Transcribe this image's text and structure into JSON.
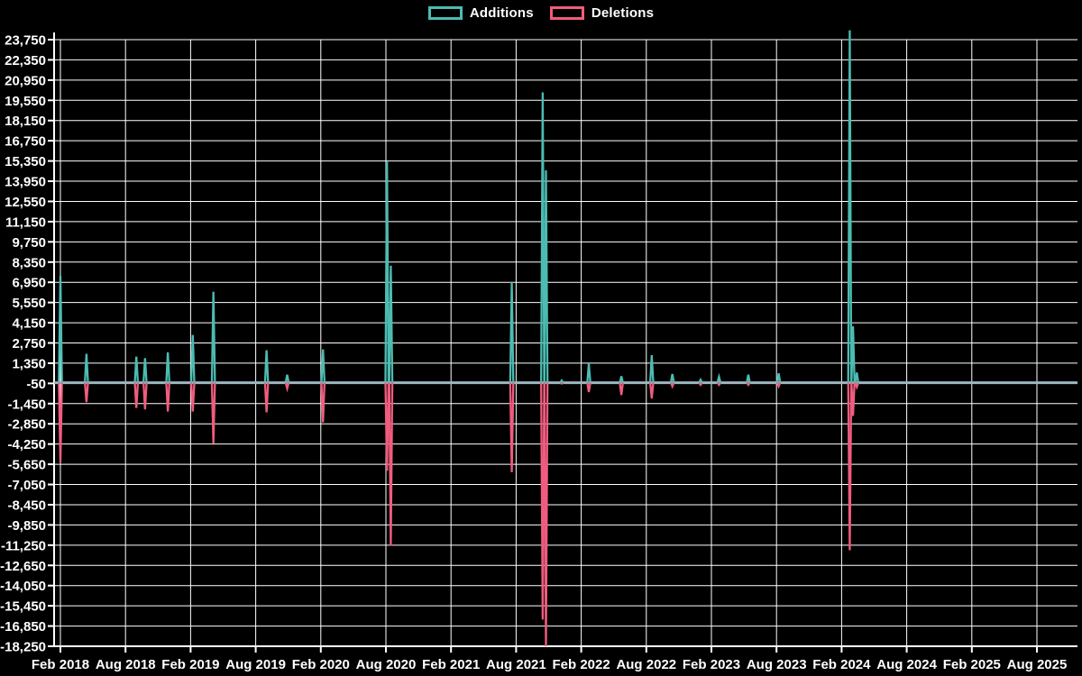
{
  "legend": {
    "additions_label": "Additions",
    "deletions_label": "Deletions"
  },
  "colors": {
    "additions": "#4cbcb2",
    "deletions": "#f05c7e",
    "grid": "#ffffff",
    "zero_line": "#9db6bf",
    "background": "#000000",
    "text": "#ffffff"
  },
  "chart_data": {
    "type": "line",
    "title": "",
    "xlabel": "",
    "ylabel": "",
    "legend_position": "top-center",
    "grid": true,
    "y_axis": {
      "max": 23750,
      "min": -18250,
      "tick_step": 1400
    },
    "x_tick_labels": [
      "Feb 2018",
      "Aug 2018",
      "Feb 2019",
      "Aug 2019",
      "Feb 2020",
      "Aug 2020",
      "Feb 2021",
      "Aug 2021",
      "Feb 2022",
      "Aug 2022",
      "Feb 2023",
      "Aug 2023",
      "Feb 2024",
      "Aug 2024",
      "Feb 2025",
      "Aug 2025"
    ],
    "series_names": [
      "Additions",
      "Deletions"
    ],
    "spikes": [
      {
        "date": "2018-02",
        "m": 0.0,
        "additions": 7400,
        "deletions": -5500
      },
      {
        "date": "2018-04",
        "m": 2.4,
        "additions": 2000,
        "deletions": -1350
      },
      {
        "date": "2018-09",
        "m": 7.0,
        "additions": 1800,
        "deletions": -1750
      },
      {
        "date": "2018-10",
        "m": 7.8,
        "additions": 1700,
        "deletions": -1850
      },
      {
        "date": "2018-12",
        "m": 9.9,
        "additions": 2100,
        "deletions": -2000
      },
      {
        "date": "2019-02",
        "m": 12.2,
        "additions": 3300,
        "deletions": -2000
      },
      {
        "date": "2019-04",
        "m": 14.1,
        "additions": 6300,
        "deletions": -4200
      },
      {
        "date": "2019-09",
        "m": 19.0,
        "additions": 2250,
        "deletions": -2050
      },
      {
        "date": "2019-11",
        "m": 20.9,
        "additions": 550,
        "deletions": -400
      },
      {
        "date": "2020-02",
        "m": 24.2,
        "additions": 2300,
        "deletions": -2750
      },
      {
        "date": "2020-08",
        "m": 30.1,
        "additions": 15300,
        "deletions": -6100
      },
      {
        "date": "2020-08",
        "m": 30.45,
        "additions": 8100,
        "deletions": -11300
      },
      {
        "date": "2021-07",
        "m": 41.6,
        "additions": 6950,
        "deletions": -6200
      },
      {
        "date": "2021-10",
        "m": 44.45,
        "additions": 20100,
        "deletions": -16400
      },
      {
        "date": "2021-10",
        "m": 44.75,
        "additions": 14700,
        "deletions": -18250
      },
      {
        "date": "2021-12",
        "m": 46.2,
        "additions": 150,
        "deletions": -60
      },
      {
        "date": "2022-02",
        "m": 48.7,
        "additions": 1300,
        "deletions": -650
      },
      {
        "date": "2022-05",
        "m": 51.7,
        "additions": 450,
        "deletions": -850
      },
      {
        "date": "2022-08",
        "m": 54.5,
        "additions": 1900,
        "deletions": -1100
      },
      {
        "date": "2022-10",
        "m": 56.4,
        "additions": 600,
        "deletions": -250
      },
      {
        "date": "2023-01",
        "m": 59.0,
        "additions": 200,
        "deletions": -150
      },
      {
        "date": "2023-02",
        "m": 60.7,
        "additions": 400,
        "deletions": -150
      },
      {
        "date": "2023-05",
        "m": 63.4,
        "additions": 550,
        "deletions": -150
      },
      {
        "date": "2023-08",
        "m": 66.2,
        "additions": 650,
        "deletions": -250
      },
      {
        "date": "2024-03",
        "m": 72.75,
        "additions": 24400,
        "deletions": -11600
      },
      {
        "date": "2024-03",
        "m": 73.05,
        "additions": 3900,
        "deletions": -2300
      },
      {
        "date": "2024-04",
        "m": 73.4,
        "additions": 700,
        "deletions": -300
      }
    ]
  }
}
